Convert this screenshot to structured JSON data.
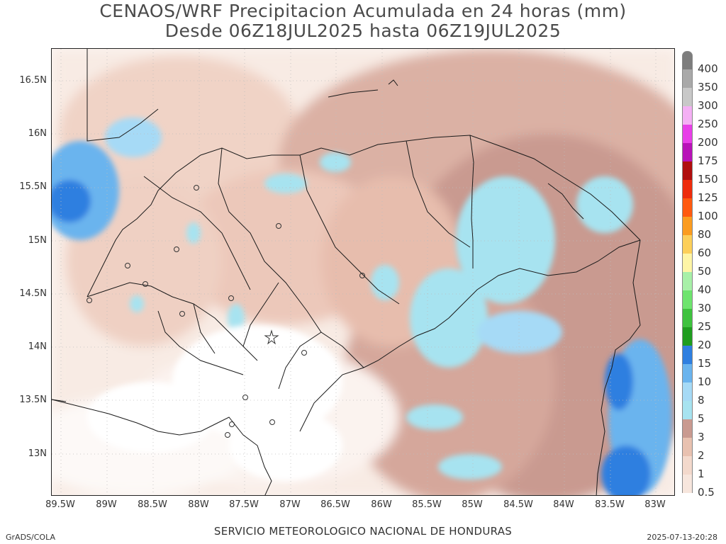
{
  "title": {
    "line1": "CENAOS/WRF Precipitacion Acumulada en 24 horas (mm)",
    "line2": "Desde 06Z18JUL2025 hasta 06Z19JUL2025"
  },
  "map": {
    "latitude_labels": [
      "16.5N",
      "16N",
      "15.5N",
      "15N",
      "14.5N",
      "14N",
      "13.5N",
      "13N"
    ],
    "longitude_labels": [
      "89.5W",
      "89W",
      "88.5W",
      "88W",
      "87.5W",
      "87W",
      "86.5W",
      "86W",
      "85.5W",
      "85W",
      "84.5W",
      "84W",
      "83.5W",
      "83W"
    ],
    "lat_range": [
      12.6,
      16.8
    ],
    "lon_range": [
      -89.6,
      -82.8
    ]
  },
  "colorbar": {
    "levels": [
      {
        "label": "0.5",
        "color": "#f7e6dd"
      },
      {
        "label": "1",
        "color": "#f3d9cc"
      },
      {
        "label": "2",
        "color": "#e8c1b0"
      },
      {
        "label": "3",
        "color": "#c99a90"
      },
      {
        "label": "5",
        "color": "#a7e3f0"
      },
      {
        "label": "8",
        "color": "#a6daf6"
      },
      {
        "label": "10",
        "color": "#6ab4ee"
      },
      {
        "label": "15",
        "color": "#2f7fe0"
      },
      {
        "label": "20",
        "color": "#1f9d1f"
      },
      {
        "label": "25",
        "color": "#3fc23f"
      },
      {
        "label": "30",
        "color": "#6ee46e"
      },
      {
        "label": "40",
        "color": "#a8f0a8"
      },
      {
        "label": "50",
        "color": "#fef5a6"
      },
      {
        "label": "60",
        "color": "#fccf5a"
      },
      {
        "label": "80",
        "color": "#fb9c20"
      },
      {
        "label": "100",
        "color": "#ff5a10"
      },
      {
        "label": "125",
        "color": "#ee2c0c"
      },
      {
        "label": "150",
        "color": "#b00e0e"
      },
      {
        "label": "175",
        "color": "#b812b8"
      },
      {
        "label": "200",
        "color": "#e83fe8"
      },
      {
        "label": "250",
        "color": "#f4b0f4"
      },
      {
        "label": "300",
        "color": "#c8c8c8"
      },
      {
        "label": "350",
        "color": "#a9a9a9"
      },
      {
        "label": "400",
        "color": "#7d7d7d"
      }
    ]
  },
  "footer": {
    "left": "GrADS/COLA",
    "center": "SERVICIO METEOROLOGICO NACIONAL DE HONDURAS",
    "right": "2025-07-13-20:28"
  }
}
